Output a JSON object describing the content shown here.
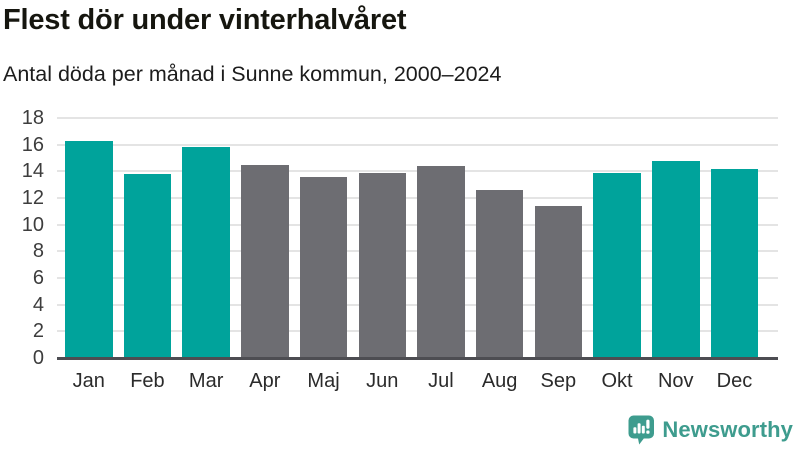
{
  "header": {
    "title": "Flest dör under vinterhalvåret",
    "subtitle": "Antal döda per månad i Sunne kommun, 2000–2024"
  },
  "chart_data": {
    "type": "bar",
    "title": "Flest dör under vinterhalvåret",
    "subtitle": "Antal döda per månad i Sunne kommun, 2000–2024",
    "categories": [
      "Jan",
      "Feb",
      "Mar",
      "Apr",
      "Maj",
      "Jun",
      "Jul",
      "Aug",
      "Sep",
      "Okt",
      "Nov",
      "Dec"
    ],
    "values": [
      16.3,
      13.8,
      15.8,
      14.5,
      13.6,
      13.9,
      14.4,
      12.6,
      11.4,
      13.9,
      14.8,
      14.2
    ],
    "bar_colors": [
      "teal",
      "teal",
      "teal",
      "gray",
      "gray",
      "gray",
      "gray",
      "gray",
      "gray",
      "teal",
      "teal",
      "teal"
    ],
    "palette": {
      "teal": "#00a39b",
      "gray": "#6d6d72"
    },
    "xlabel": "",
    "ylabel": "",
    "ylim": [
      0,
      18
    ],
    "ytick_step": 2,
    "yticks": [
      0,
      2,
      4,
      6,
      8,
      10,
      12,
      14,
      16,
      18
    ],
    "grid": "horizontal",
    "legend": "none"
  },
  "footer": {
    "brand": "Newsworthy",
    "brand_color": "#3e9c8e",
    "logo_icon": "newsworthy-speech-bubble-chart-icon"
  }
}
